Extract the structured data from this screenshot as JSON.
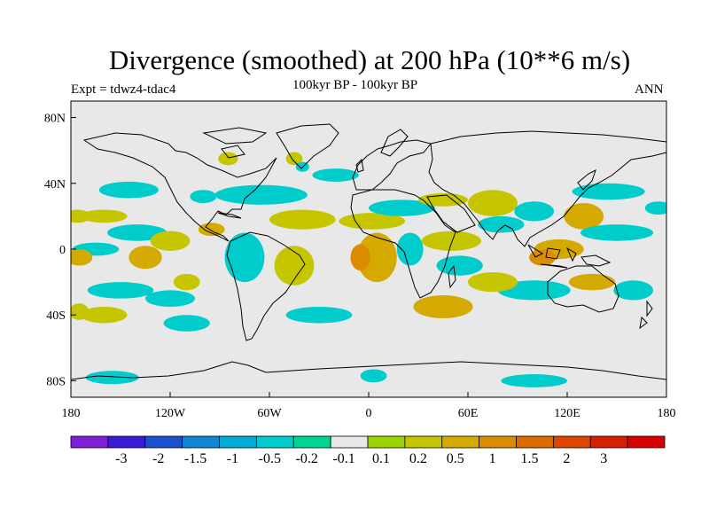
{
  "title": "Divergence (smoothed) at 200 hPa (10**6 m/s)",
  "experiment": "Expt = tdwz4-tdac4",
  "period": "100kyr BP - 100kyr BP",
  "season": "ANN",
  "map": {
    "projection": "cylindrical-equidistant",
    "lon_range": [
      -180,
      180
    ],
    "lat_range": [
      -90,
      90
    ],
    "background_color": "#e8e8e8",
    "coastline_color": "#000000",
    "x_ticks": [
      {
        "lon": -180,
        "label": "180"
      },
      {
        "lon": -120,
        "label": "120W"
      },
      {
        "lon": -60,
        "label": "60W"
      },
      {
        "lon": 0,
        "label": "0"
      },
      {
        "lon": 60,
        "label": "60E"
      },
      {
        "lon": 120,
        "label": "120E"
      },
      {
        "lon": 180,
        "label": "180"
      }
    ],
    "y_ticks": [
      {
        "lat": 80,
        "label": "80N"
      },
      {
        "lat": 40,
        "label": "40N"
      },
      {
        "lat": 0,
        "label": "0"
      },
      {
        "lat": -40,
        "label": "40S"
      },
      {
        "lat": -80,
        "label": "80S"
      }
    ]
  },
  "colorbar": {
    "colors": [
      "#7f1fd8",
      "#3a1bd8",
      "#1b4fd0",
      "#0e86d4",
      "#00abd6",
      "#00cccc",
      "#00d495",
      "#e8e8e8",
      "#97d400",
      "#c6c600",
      "#d4a900",
      "#dc8c00",
      "#dc6c00",
      "#dc4600",
      "#d81e00",
      "#d80000"
    ],
    "labels": [
      "-3",
      "-2",
      "-1.5",
      "-1",
      "-0.5",
      "-0.2",
      "-0.1",
      "0.1",
      "0.2",
      "0.5",
      "1",
      "1.5",
      "2",
      "3"
    ]
  },
  "field_patches": [
    {
      "lon": 175,
      "lat": 25,
      "rx": 8,
      "ry": 4,
      "level": "-0.2"
    },
    {
      "lon": -176,
      "lat": 20,
      "rx": 8,
      "ry": 4,
      "level": "0.2"
    },
    {
      "lon": -160,
      "lat": 20,
      "rx": 14,
      "ry": 4,
      "level": "0.2"
    },
    {
      "lon": -145,
      "lat": 36,
      "rx": 18,
      "ry": 5,
      "level": "-0.2"
    },
    {
      "lon": -140,
      "lat": 10,
      "rx": 18,
      "ry": 5,
      "level": "-0.2"
    },
    {
      "lon": -100,
      "lat": 32,
      "rx": 8,
      "ry": 4,
      "level": "-0.2"
    },
    {
      "lon": -65,
      "lat": 33,
      "rx": 28,
      "ry": 6,
      "level": "-0.2"
    },
    {
      "lon": -20,
      "lat": 45,
      "rx": 14,
      "ry": 4,
      "level": "-0.2"
    },
    {
      "lon": -40,
      "lat": 18,
      "rx": 20,
      "ry": 6,
      "level": "0.2"
    },
    {
      "lon": 2,
      "lat": 17,
      "rx": 20,
      "ry": 5,
      "level": "0.2"
    },
    {
      "lon": -165,
      "lat": 0,
      "rx": 14,
      "ry": 4,
      "level": "-0.2"
    },
    {
      "lon": -120,
      "lat": 5,
      "rx": 12,
      "ry": 6,
      "level": "0.2"
    },
    {
      "lon": -175,
      "lat": -5,
      "rx": 8,
      "ry": 5,
      "level": "0.5"
    },
    {
      "lon": -150,
      "lat": -25,
      "rx": 20,
      "ry": 5,
      "level": "-0.2"
    },
    {
      "lon": -120,
      "lat": -30,
      "rx": 15,
      "ry": 5,
      "level": "-0.2"
    },
    {
      "lon": -135,
      "lat": -5,
      "rx": 10,
      "ry": 7,
      "level": "0.5"
    },
    {
      "lon": -110,
      "lat": -20,
      "rx": 8,
      "ry": 5,
      "level": "0.2"
    },
    {
      "lon": -95,
      "lat": 12,
      "rx": 8,
      "ry": 4,
      "level": "0.5"
    },
    {
      "lon": -75,
      "lat": -5,
      "rx": 12,
      "ry": 15,
      "level": "-0.2"
    },
    {
      "lon": -45,
      "lat": -10,
      "rx": 12,
      "ry": 12,
      "level": "0.2"
    },
    {
      "lon": -30,
      "lat": -40,
      "rx": 20,
      "ry": 5,
      "level": "-0.2"
    },
    {
      "lon": -160,
      "lat": -40,
      "rx": 14,
      "ry": 5,
      "level": "0.2"
    },
    {
      "lon": -110,
      "lat": -45,
      "rx": 14,
      "ry": 5,
      "level": "-0.2"
    },
    {
      "lon": 5,
      "lat": -5,
      "rx": 12,
      "ry": 15,
      "level": "0.5"
    },
    {
      "lon": -5,
      "lat": -5,
      "rx": 6,
      "ry": 8,
      "level": "1"
    },
    {
      "lon": 25,
      "lat": 0,
      "rx": 8,
      "ry": 10,
      "level": "-0.2"
    },
    {
      "lon": 50,
      "lat": 5,
      "rx": 18,
      "ry": 6,
      "level": "0.2"
    },
    {
      "lon": 45,
      "lat": -35,
      "rx": 18,
      "ry": 7,
      "level": "0.5"
    },
    {
      "lon": 55,
      "lat": -10,
      "rx": 14,
      "ry": 6,
      "level": "-0.2"
    },
    {
      "lon": 20,
      "lat": 25,
      "rx": 20,
      "ry": 5,
      "level": "-0.2"
    },
    {
      "lon": 45,
      "lat": 30,
      "rx": 15,
      "ry": 4,
      "level": "0.2"
    },
    {
      "lon": 75,
      "lat": 28,
      "rx": 15,
      "ry": 8,
      "level": "0.2"
    },
    {
      "lon": 80,
      "lat": 15,
      "rx": 14,
      "ry": 5,
      "level": "-0.2"
    },
    {
      "lon": 100,
      "lat": 23,
      "rx": 12,
      "ry": 6,
      "level": "-0.2"
    },
    {
      "lon": 115,
      "lat": 0,
      "rx": 15,
      "ry": 6,
      "level": "0.5"
    },
    {
      "lon": 130,
      "lat": 20,
      "rx": 12,
      "ry": 8,
      "level": "0.5"
    },
    {
      "lon": 150,
      "lat": 10,
      "rx": 22,
      "ry": 5,
      "level": "-0.2"
    },
    {
      "lon": 145,
      "lat": 35,
      "rx": 22,
      "ry": 5,
      "level": "-0.2"
    },
    {
      "lon": 100,
      "lat": -25,
      "rx": 22,
      "ry": 6,
      "level": "-0.2"
    },
    {
      "lon": 135,
      "lat": -20,
      "rx": 14,
      "ry": 5,
      "level": "0.5"
    },
    {
      "lon": 160,
      "lat": -25,
      "rx": 12,
      "ry": 6,
      "level": "-0.2"
    },
    {
      "lon": 75,
      "lat": -20,
      "rx": 15,
      "ry": 6,
      "level": "0.2"
    },
    {
      "lon": 105,
      "lat": -5,
      "rx": 8,
      "ry": 5,
      "level": "1"
    },
    {
      "lon": -175,
      "lat": -38,
      "rx": 6,
      "ry": 5,
      "level": "0.2"
    },
    {
      "lon": -155,
      "lat": -78,
      "rx": 16,
      "ry": 4,
      "level": "-0.2"
    },
    {
      "lon": 3,
      "lat": -77,
      "rx": 8,
      "ry": 4,
      "level": "-0.2"
    },
    {
      "lon": 100,
      "lat": -80,
      "rx": 20,
      "ry": 4,
      "level": "-0.2"
    },
    {
      "lon": -85,
      "lat": 55,
      "rx": 6,
      "ry": 4,
      "level": "0.2"
    },
    {
      "lon": -45,
      "lat": 55,
      "rx": 5,
      "ry": 4,
      "level": "0.2"
    },
    {
      "lon": -40,
      "lat": 50,
      "rx": 4,
      "ry": 3,
      "level": "-0.2"
    }
  ]
}
